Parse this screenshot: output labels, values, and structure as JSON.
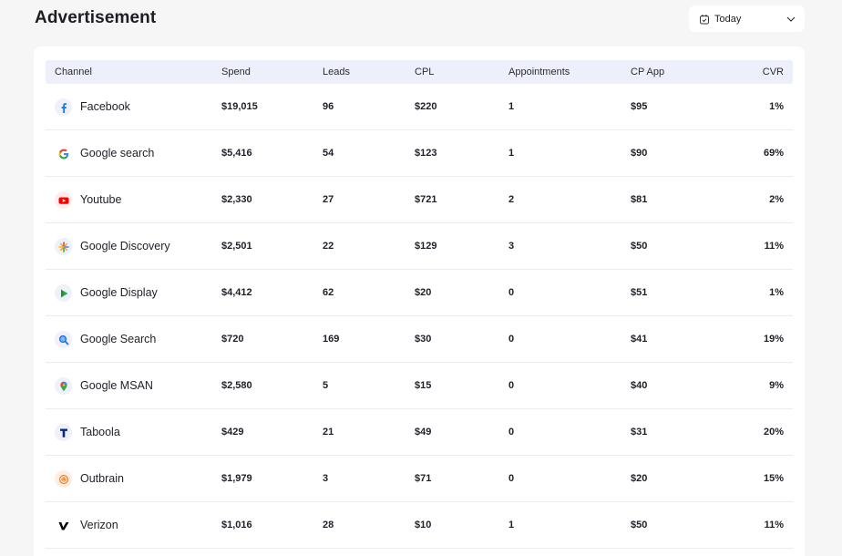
{
  "page": {
    "title": "Advertisement"
  },
  "date_filter": {
    "label": "Today",
    "icon": "calendar-icon",
    "chevron": "chevron-down-icon"
  },
  "table": {
    "headers": [
      "Channel",
      "Spend",
      "Leads",
      "CPL",
      "Appointments",
      "CP App",
      "CVR"
    ],
    "rows": [
      {
        "channel": "Facebook",
        "icon": "facebook-icon",
        "spend": "$19,015",
        "leads": "96",
        "cpl": "$220",
        "appointments": "1",
        "cp_app": "$95",
        "cvr": "1%"
      },
      {
        "channel": "Google search",
        "icon": "google-icon",
        "spend": "$5,416",
        "leads": "54",
        "cpl": "$123",
        "appointments": "1",
        "cp_app": "$90",
        "cvr": "69%"
      },
      {
        "channel": "Youtube",
        "icon": "youtube-icon",
        "spend": "$2,330",
        "leads": "27",
        "cpl": "$721",
        "appointments": "2",
        "cp_app": "$81",
        "cvr": "2%"
      },
      {
        "channel": "Google Discovery",
        "icon": "google-discover-icon",
        "spend": "$2,501",
        "leads": "22",
        "cpl": "$129",
        "appointments": "3",
        "cp_app": "$50",
        "cvr": "11%"
      },
      {
        "channel": "Google Display",
        "icon": "google-display-icon",
        "spend": "$4,412",
        "leads": "62",
        "cpl": "$20",
        "appointments": "0",
        "cp_app": "$51",
        "cvr": "1%"
      },
      {
        "channel": "Google Search",
        "icon": "google-search-magnifier-icon",
        "spend": "$720",
        "leads": "169",
        "cpl": "$30",
        "appointments": "0",
        "cp_app": "$41",
        "cvr": "19%"
      },
      {
        "channel": "Google MSAN",
        "icon": "google-maps-pin-icon",
        "spend": "$2,580",
        "leads": "5",
        "cpl": "$15",
        "appointments": "0",
        "cp_app": "$40",
        "cvr": "9%"
      },
      {
        "channel": "Taboola",
        "icon": "taboola-icon",
        "spend": "$429",
        "leads": "21",
        "cpl": "$49",
        "appointments": "0",
        "cp_app": "$31",
        "cvr": "20%"
      },
      {
        "channel": "Outbrain",
        "icon": "outbrain-icon",
        "spend": "$1,979",
        "leads": "3",
        "cpl": "$71",
        "appointments": "0",
        "cp_app": "$20",
        "cvr": "15%"
      },
      {
        "channel": "Verizon",
        "icon": "verizon-icon",
        "spend": "$1,016",
        "leads": "28",
        "cpl": "$10",
        "appointments": "1",
        "cp_app": "$50",
        "cvr": "11%"
      }
    ]
  },
  "colors": {
    "background": "#f6f6f6",
    "card": "#ffffff",
    "header_bg": "#edf0fb",
    "facebook": "#1877f2",
    "youtube": "#ff0000",
    "taboola": "#0a2a7a"
  }
}
